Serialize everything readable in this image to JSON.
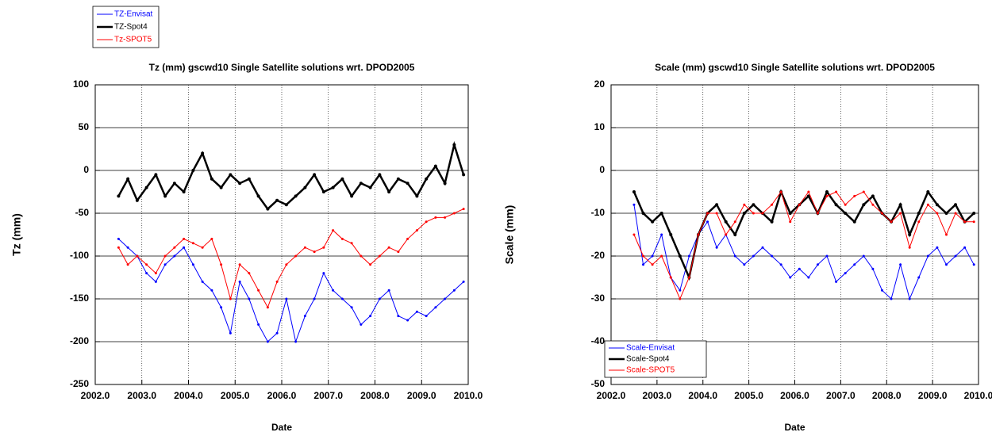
{
  "chart_data": [
    {
      "type": "line",
      "title": "Tz (mm) gscwd10 Single Satellite solutions wrt. DPOD2005",
      "xlabel": "Date",
      "ylabel": "Tz (mm)",
      "x": [
        2002.5,
        2002.7,
        2002.9,
        2003.1,
        2003.3,
        2003.5,
        2003.7,
        2003.9,
        2004.1,
        2004.3,
        2004.5,
        2004.7,
        2004.9,
        2005.1,
        2005.3,
        2005.5,
        2005.7,
        2005.9,
        2006.1,
        2006.3,
        2006.5,
        2006.7,
        2006.9,
        2007.1,
        2007.3,
        2007.5,
        2007.7,
        2007.9,
        2008.1,
        2008.3,
        2008.5,
        2008.7,
        2008.9,
        2009.1,
        2009.3,
        2009.5,
        2009.7,
        2009.9
      ],
      "series": [
        {
          "name": "TZ-Envisat",
          "color": "#0000ff",
          "width": 1,
          "values": [
            -80,
            -90,
            -100,
            -120,
            -130,
            -110,
            -100,
            -90,
            -110,
            -130,
            -140,
            -160,
            -190,
            -130,
            -150,
            -180,
            -200,
            -190,
            -150,
            -200,
            -170,
            -150,
            -120,
            -140,
            -150,
            -160,
            -180,
            -170,
            -150,
            -140,
            -170,
            -175,
            -165,
            -170,
            -160,
            -150,
            -140,
            -130
          ]
        },
        {
          "name": "TZ-Spot4",
          "color": "#000000",
          "width": 2.5,
          "values": [
            -30,
            -10,
            -35,
            -20,
            -5,
            -30,
            -15,
            -25,
            0,
            20,
            -10,
            -20,
            -5,
            -15,
            -10,
            -30,
            -45,
            -35,
            -40,
            -30,
            -20,
            -5,
            -25,
            -20,
            -10,
            -30,
            -15,
            -20,
            -5,
            -25,
            -10,
            -15,
            -30,
            -10,
            5,
            -15,
            30,
            -5
          ]
        },
        {
          "name": "Tz-SPOT5",
          "color": "#ff0000",
          "width": 1,
          "values": [
            -90,
            -110,
            -100,
            -110,
            -120,
            -100,
            -90,
            -80,
            -85,
            -90,
            -80,
            -110,
            -150,
            -110,
            -120,
            -140,
            -160,
            -130,
            -110,
            -100,
            -90,
            -95,
            -90,
            -70,
            -80,
            -85,
            -100,
            -110,
            -100,
            -90,
            -95,
            -80,
            -70,
            -60,
            -55,
            -55,
            -50,
            -45
          ]
        }
      ],
      "xlim": [
        2002,
        2010
      ],
      "xticks": [
        {
          "value": 2002,
          "label": "2002.0"
        },
        {
          "value": 2003,
          "label": "2003.0"
        },
        {
          "value": 2004,
          "label": "2004.0"
        },
        {
          "value": 2005,
          "label": "2005.0"
        },
        {
          "value": 2006,
          "label": "2006.0"
        },
        {
          "value": 2007,
          "label": "2007.0"
        },
        {
          "value": 2008,
          "label": "2008.0"
        },
        {
          "value": 2009,
          "label": "2009.0"
        },
        {
          "value": 2010,
          "label": "2010.0"
        }
      ],
      "ylim": [
        -250,
        100
      ],
      "yticks": [
        -250,
        -200,
        -150,
        -100,
        -50,
        0,
        50,
        100
      ],
      "grid": true,
      "legend": "outside-top-left"
    },
    {
      "type": "line",
      "title": "Scale (mm) gscwd10 Single Satellite solutions wrt. DPOD2005",
      "xlabel": "Date",
      "ylabel": "Scale (mm)",
      "x": [
        2002.5,
        2002.7,
        2002.9,
        2003.1,
        2003.3,
        2003.5,
        2003.7,
        2003.9,
        2004.1,
        2004.3,
        2004.5,
        2004.7,
        2004.9,
        2005.1,
        2005.3,
        2005.5,
        2005.7,
        2005.9,
        2006.1,
        2006.3,
        2006.5,
        2006.7,
        2006.9,
        2007.1,
        2007.3,
        2007.5,
        2007.7,
        2007.9,
        2008.1,
        2008.3,
        2008.5,
        2008.7,
        2008.9,
        2009.1,
        2009.3,
        2009.5,
        2009.7,
        2009.9
      ],
      "series": [
        {
          "name": "Scale-Envisat",
          "color": "#0000ff",
          "width": 1,
          "values": [
            -8,
            -22,
            -20,
            -15,
            -25,
            -28,
            -20,
            -15,
            -12,
            -18,
            -15,
            -20,
            -22,
            -20,
            -18,
            -20,
            -22,
            -25,
            -23,
            -25,
            -22,
            -20,
            -26,
            -24,
            -22,
            -20,
            -23,
            -28,
            -30,
            -22,
            -30,
            -25,
            -20,
            -18,
            -22,
            -20,
            -18,
            -22
          ]
        },
        {
          "name": "Scale-Spot4",
          "color": "#000000",
          "width": 2.5,
          "values": [
            -5,
            -10,
            -12,
            -10,
            -15,
            -20,
            -25,
            -15,
            -10,
            -8,
            -12,
            -15,
            -10,
            -8,
            -10,
            -12,
            -5,
            -10,
            -8,
            -6,
            -10,
            -5,
            -8,
            -10,
            -12,
            -8,
            -6,
            -10,
            -12,
            -8,
            -15,
            -10,
            -5,
            -8,
            -10,
            -8,
            -12,
            -10
          ]
        },
        {
          "name": "Scale-SPOT5",
          "color": "#ff0000",
          "width": 1,
          "values": [
            -15,
            -20,
            -22,
            -20,
            -25,
            -30,
            -25,
            -15,
            -10,
            -10,
            -15,
            -12,
            -8,
            -10,
            -10,
            -8,
            -5,
            -12,
            -8,
            -5,
            -10,
            -6,
            -5,
            -8,
            -6,
            -5,
            -8,
            -10,
            -12,
            -10,
            -18,
            -12,
            -8,
            -10,
            -15,
            -10,
            -12,
            -12
          ]
        }
      ],
      "xlim": [
        2002,
        2010
      ],
      "xticks": [
        {
          "value": 2002,
          "label": "2002.0"
        },
        {
          "value": 2003,
          "label": "2003.0"
        },
        {
          "value": 2004,
          "label": "2004.0"
        },
        {
          "value": 2005,
          "label": "2005.0"
        },
        {
          "value": 2006,
          "label": "2006.0"
        },
        {
          "value": 2007,
          "label": "2007.0"
        },
        {
          "value": 2008,
          "label": "2008.0"
        },
        {
          "value": 2009,
          "label": "2009.0"
        },
        {
          "value": 2010,
          "label": "2010.0"
        }
      ],
      "ylim": [
        -50,
        20
      ],
      "yticks": [
        -50,
        -40,
        -30,
        -20,
        -10,
        0,
        10,
        20
      ],
      "grid": true,
      "legend": "lower-left"
    }
  ]
}
